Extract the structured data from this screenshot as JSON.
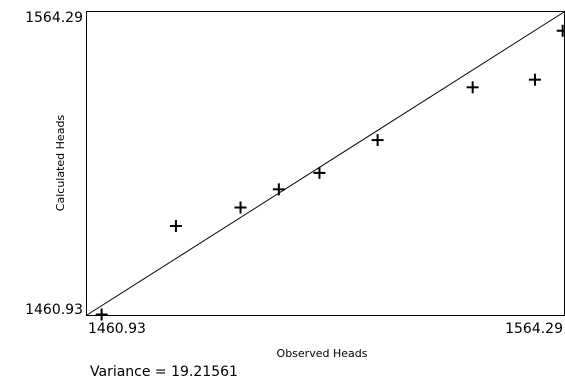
{
  "chart_data": {
    "type": "scatter",
    "xlabel": "Observed Heads",
    "ylabel": "Calculated Heads",
    "xlim": [
      1460.93,
      1564.29
    ],
    "ylim": [
      1460.93,
      1564.29
    ],
    "x_tick_labels": [
      "1460.93",
      "1564.29"
    ],
    "y_tick_labels": [
      "1564.29",
      "1460.93"
    ],
    "grid": false,
    "reference_line": {
      "from": [
        1460.93,
        1460.93
      ],
      "to": [
        1564.29,
        1564.29
      ]
    },
    "marker": "+",
    "series": [
      {
        "points": [
          {
            "x": 1464.1,
            "y": 1461.1
          },
          {
            "x": 1480.2,
            "y": 1491.3
          },
          {
            "x": 1494.2,
            "y": 1497.6
          },
          {
            "x": 1502.5,
            "y": 1503.8
          },
          {
            "x": 1511.3,
            "y": 1509.4
          },
          {
            "x": 1523.9,
            "y": 1520.6
          },
          {
            "x": 1544.5,
            "y": 1538.6
          },
          {
            "x": 1558.0,
            "y": 1541.2
          },
          {
            "x": 1564.0,
            "y": 1557.9
          }
        ]
      }
    ],
    "annotation": "Variance = 19.21561"
  },
  "colors": {
    "background": "#ffffff",
    "ink": "#000000"
  }
}
